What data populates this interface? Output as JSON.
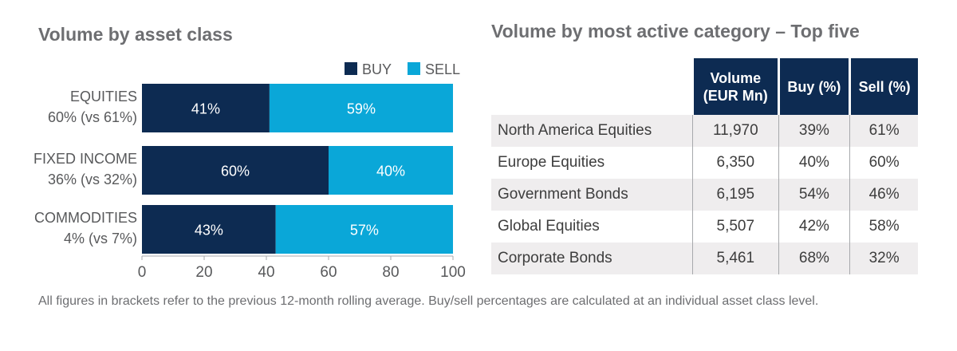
{
  "left_title": "Volume by asset class",
  "right_title": "Volume by most active category – Top five",
  "colors": {
    "buy": "#0d2b52",
    "sell": "#0aa7d8",
    "text": "#58595b"
  },
  "chart_data": {
    "type": "bar",
    "orientation": "horizontal",
    "stacked": true,
    "categories": [
      "EQUITIES",
      "FIXED INCOME",
      "COMMODITIES"
    ],
    "category_sublabels": [
      "60% (vs 61%)",
      "36% (vs 32%)",
      "4% (vs 7%)"
    ],
    "series": [
      {
        "name": "BUY",
        "values": [
          41,
          60,
          43
        ],
        "labels": [
          "41%",
          "60%",
          "43%"
        ]
      },
      {
        "name": "SELL",
        "values": [
          59,
          40,
          57
        ],
        "labels": [
          "59%",
          "40%",
          "57%"
        ]
      }
    ],
    "xlim": [
      0,
      100
    ],
    "xticks": [
      "0",
      "20",
      "40",
      "60",
      "80",
      "100"
    ],
    "legend_position": "top-right",
    "grid": false
  },
  "table": {
    "headers": [
      "Volume\n(EUR Mn)",
      "Buy (%)",
      "Sell (%)"
    ],
    "rows": [
      [
        "North America Equities",
        "11,970",
        "39%",
        "61%"
      ],
      [
        "Europe Equities",
        "6,350",
        "40%",
        "60%"
      ],
      [
        "Government Bonds",
        "6,195",
        "54%",
        "46%"
      ],
      [
        "Global Equities",
        "5,507",
        "42%",
        "58%"
      ],
      [
        "Corporate Bonds",
        "5,461",
        "68%",
        "32%"
      ]
    ]
  },
  "footnote": "All figures in brackets refer to the previous 12-month rolling average. Buy/sell percentages are calculated at an individual asset class level."
}
